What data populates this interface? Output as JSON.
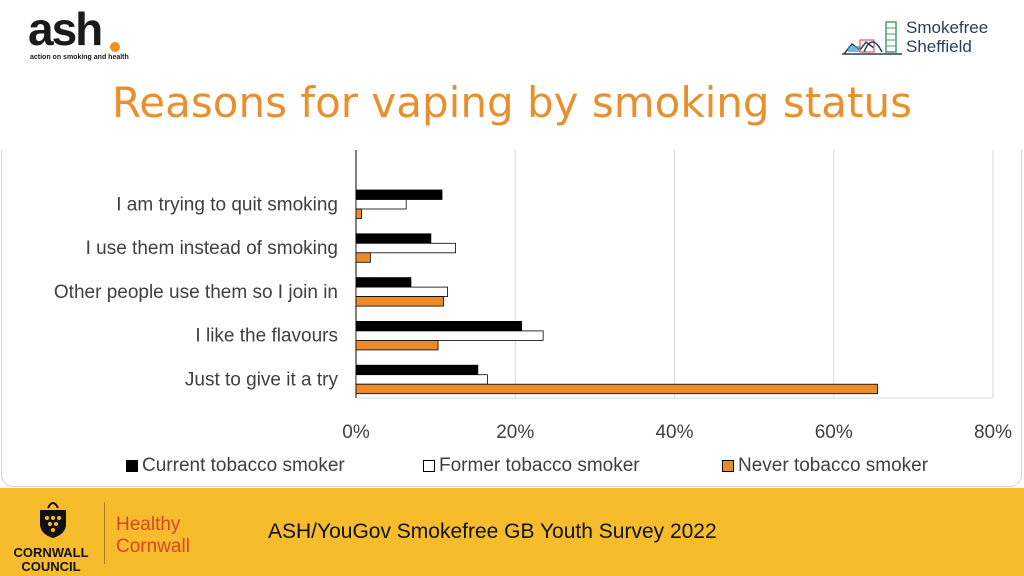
{
  "header": {
    "ash_logo": {
      "word": "ash",
      "tagline": "action on smoking and health"
    },
    "smokefree_logo": {
      "line1": "Smokefree",
      "line2": "Sheffield"
    },
    "title": "Reasons for vaping by smoking status"
  },
  "chart_data": {
    "type": "bar",
    "orientation": "horizontal",
    "categories": [
      "I am trying to quit smoking",
      "I use them instead of smoking",
      "Other people use them so I join in",
      "I like the flavours",
      "Just to give it a try"
    ],
    "series": [
      {
        "name": "Current tobacco smoker",
        "values": [
          10.8,
          9.4,
          6.9,
          20.8,
          15.3
        ],
        "color": "#000000"
      },
      {
        "name": "Former tobacco smoker",
        "values": [
          6.3,
          12.5,
          11.5,
          23.5,
          16.5
        ],
        "color": "#ffffff"
      },
      {
        "name": "Never tobacco smoker",
        "values": [
          0.7,
          1.8,
          11.0,
          10.3,
          65.5
        ],
        "color": "#ed8b2b"
      }
    ],
    "xlim": [
      0,
      80
    ],
    "xticks": [
      "0%",
      "20%",
      "40%",
      "60%",
      "80%"
    ],
    "grid": true,
    "legend_position": "bottom",
    "title": "",
    "xlabel": "",
    "ylabel": ""
  },
  "footer": {
    "council": {
      "line1": "CORNWALL",
      "line2": "COUNCIL"
    },
    "healthy": {
      "line1": "Healthy",
      "line2": "Cornwall"
    },
    "source": "ASH/YouGov Smokefree GB Youth Survey 2022"
  },
  "colors": {
    "title": "#e8902f",
    "footer_bg": "#f6bc2b",
    "never_bar": "#ed8b2b"
  }
}
